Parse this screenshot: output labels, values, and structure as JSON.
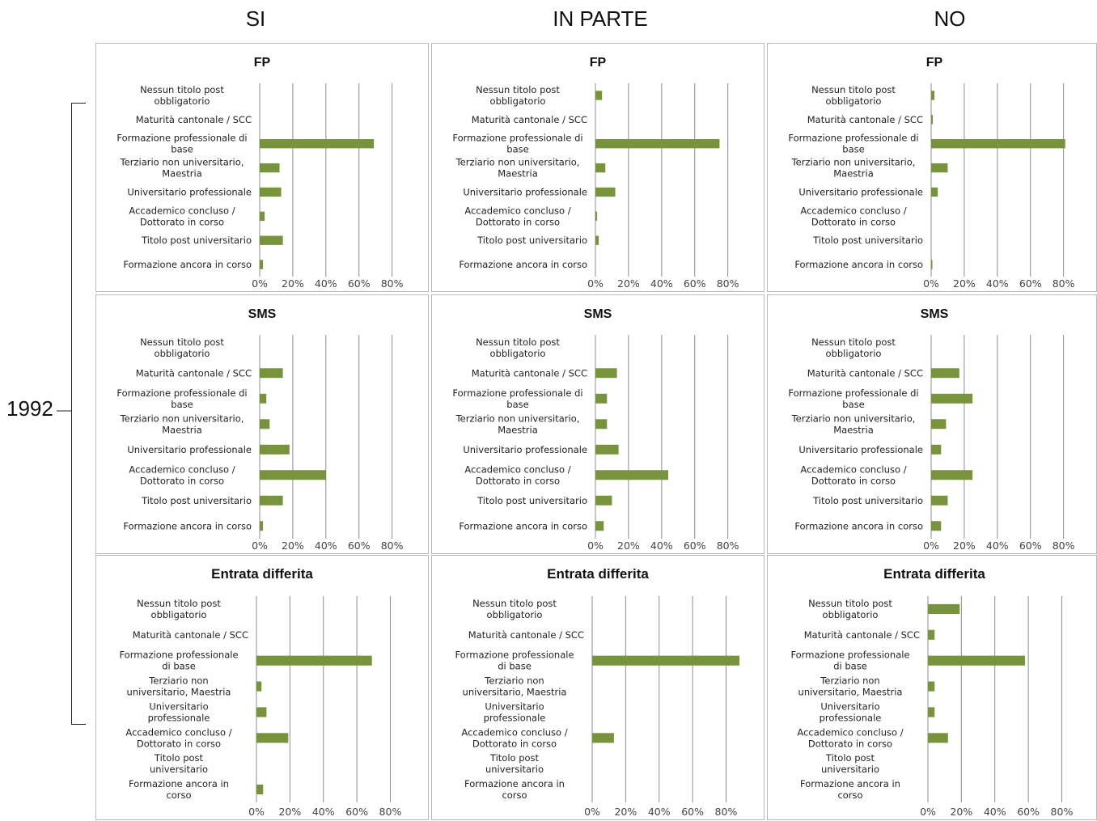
{
  "column_headers": [
    "SI",
    "IN PARTE",
    "NO"
  ],
  "year_label": "1992",
  "colors": {
    "bar": "#77933c",
    "grid": "#8c8c8c",
    "border": "#b7b7b7"
  },
  "chart_data": [
    {
      "type": "bar",
      "orientation": "horizontal",
      "title": "FP",
      "group": "SI",
      "categories": [
        "Nessun titolo post obbligatorio",
        "Maturità cantonale / SCC",
        "Formazione professionale di base",
        "Terziario non universitario, Maestria",
        "Universitario professionale",
        "Accademico concluso / Dottorato in corso",
        "Titolo post universitario",
        "Formazione ancora in corso"
      ],
      "values": [
        0,
        0,
        69,
        12,
        13,
        3,
        14,
        2
      ],
      "xticks": [
        "0%",
        "20%",
        "40%",
        "60%",
        "80%"
      ],
      "xlim": [
        0,
        88
      ]
    },
    {
      "type": "bar",
      "orientation": "horizontal",
      "title": "FP",
      "group": "IN PARTE",
      "categories": [
        "Nessun titolo post obbligatorio",
        "Maturità cantonale / SCC",
        "Formazione professionale di base",
        "Terziario non universitario, Maestria",
        "Universitario professionale",
        "Accademico concluso / Dottorato in corso",
        "Titolo post universitario",
        "Formazione ancora in corso"
      ],
      "values": [
        4,
        0,
        75,
        6,
        12,
        1,
        2,
        0
      ],
      "xticks": [
        "0%",
        "20%",
        "40%",
        "60%",
        "80%"
      ],
      "xlim": [
        0,
        88
      ]
    },
    {
      "type": "bar",
      "orientation": "horizontal",
      "title": "FP",
      "group": "NO",
      "categories": [
        "Nessun titolo post obbligatorio",
        "Maturità cantonale / SCC",
        "Formazione professionale di base",
        "Terziario non universitario, Maestria",
        "Universitario professionale",
        "Accademico concluso / Dottorato in corso",
        "Titolo post universitario",
        "Formazione ancora in corso"
      ],
      "values": [
        2,
        1,
        81,
        10,
        4,
        0,
        0,
        0.5
      ],
      "xticks": [
        "0%",
        "20%",
        "40%",
        "60%",
        "80%"
      ],
      "xlim": [
        0,
        88
      ]
    },
    {
      "type": "bar",
      "orientation": "horizontal",
      "title": "SMS",
      "group": "SI",
      "categories": [
        "Nessun titolo post obbligatorio",
        "Maturità cantonale / SCC",
        "Formazione professionale di base",
        "Terziario non universitario, Maestria",
        "Universitario professionale",
        "Accademico concluso / Dottorato in corso",
        "Titolo post universitario",
        "Formazione ancora in corso"
      ],
      "values": [
        0,
        14,
        4,
        6,
        18,
        40,
        14,
        2
      ],
      "xticks": [
        "0%",
        "20%",
        "40%",
        "60%",
        "80%"
      ],
      "xlim": [
        0,
        88
      ]
    },
    {
      "type": "bar",
      "orientation": "horizontal",
      "title": "SMS",
      "group": "IN PARTE",
      "categories": [
        "Nessun titolo post obbligatorio",
        "Maturità cantonale / SCC",
        "Formazione professionale di base",
        "Terziario non universitario, Maestria",
        "Universitario professionale",
        "Accademico concluso / Dottorato in corso",
        "Titolo post universitario",
        "Formazione ancora in corso"
      ],
      "values": [
        0,
        13,
        7,
        7,
        14,
        44,
        10,
        5
      ],
      "xticks": [
        "0%",
        "20%",
        "40%",
        "60%",
        "80%"
      ],
      "xlim": [
        0,
        88
      ]
    },
    {
      "type": "bar",
      "orientation": "horizontal",
      "title": "SMS",
      "group": "NO",
      "categories": [
        "Nessun titolo post obbligatorio",
        "Maturità cantonale / SCC",
        "Formazione professionale di base",
        "Terziario non universitario, Maestria",
        "Universitario professionale",
        "Accademico concluso / Dottorato in corso",
        "Titolo post universitario",
        "Formazione ancora in corso"
      ],
      "values": [
        0,
        17,
        25,
        9,
        6,
        25,
        10,
        6
      ],
      "xticks": [
        "0%",
        "20%",
        "40%",
        "60%",
        "80%"
      ],
      "xlim": [
        0,
        88
      ]
    },
    {
      "type": "bar",
      "orientation": "horizontal",
      "title": "Entrata differita",
      "group": "SI",
      "categories": [
        "Nessun titolo post obbligatorio",
        "Maturità cantonale / SCC",
        "Formazione professionale di base",
        "Terziario non universitario, Maestria",
        "Universitario professionale",
        "Accademico concluso / Dottorato in corso",
        "Titolo post universitario",
        "Formazione ancora in corso"
      ],
      "values": [
        0,
        0,
        69,
        3,
        6,
        19,
        0,
        4
      ],
      "xticks": [
        "0%",
        "20%",
        "40%",
        "60%",
        "80%"
      ],
      "xlim": [
        0,
        88
      ]
    },
    {
      "type": "bar",
      "orientation": "horizontal",
      "title": "Entrata differita",
      "group": "IN PARTE",
      "categories": [
        "Nessun titolo post obbligatorio",
        "Maturità cantonale / SCC",
        "Formazione professionale di base",
        "Terziario non universitario, Maestria",
        "Universitario professionale",
        "Accademico concluso / Dottorato in corso",
        "Titolo post universitario",
        "Formazione ancora in corso"
      ],
      "values": [
        0,
        0,
        88,
        0,
        0,
        13,
        0,
        0
      ],
      "xticks": [
        "0%",
        "20%",
        "40%",
        "60%",
        "80%"
      ],
      "xlim": [
        0,
        88
      ]
    },
    {
      "type": "bar",
      "orientation": "horizontal",
      "title": "Entrata differita",
      "group": "NO",
      "categories": [
        "Nessun titolo post obbligatorio",
        "Maturità cantonale / SCC",
        "Formazione professionale di base",
        "Terziario non universitario, Maestria",
        "Universitario professionale",
        "Accademico concluso / Dottorato in corso",
        "Titolo post universitario",
        "Formazione ancora in corso"
      ],
      "values": [
        19,
        4,
        58,
        4,
        4,
        12,
        0,
        0
      ],
      "xticks": [
        "0%",
        "20%",
        "40%",
        "60%",
        "80%"
      ],
      "xlim": [
        0,
        88
      ]
    }
  ]
}
